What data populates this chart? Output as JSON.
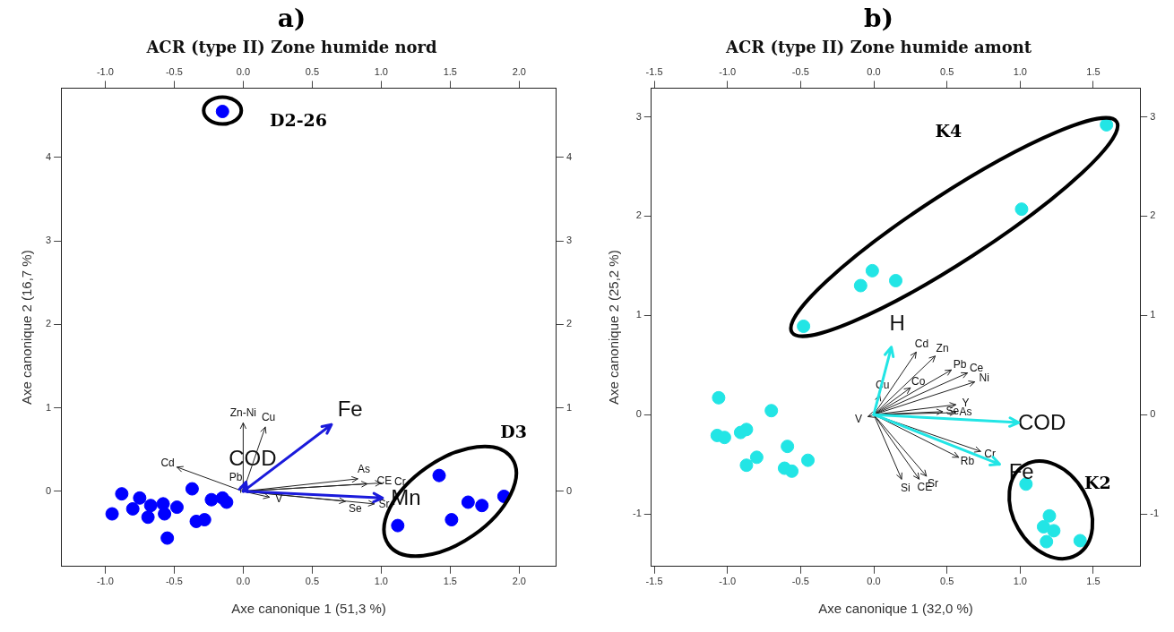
{
  "chart_data": [
    {
      "type": "scatter",
      "title": "a)",
      "subtitle": "ACR (type II) Zone humide nord",
      "xlabel": "Axe canonique 1 (51,3 %)",
      "ylabel": "Axe canonique 2 (16,7 %)",
      "xlim": [
        -1.32,
        2.27
      ],
      "xticks": [
        {
          "value": -1,
          "label": "-1.0"
        },
        {
          "value": -0.5,
          "label": "-0.5"
        },
        {
          "value": 0,
          "label": "0.0"
        },
        {
          "value": 0.5,
          "label": "0.5"
        },
        {
          "value": 1,
          "label": "1.0"
        },
        {
          "value": 1.5,
          "label": "1.5"
        },
        {
          "value": 2,
          "label": "2.0"
        }
      ],
      "x2lim": [
        -1.32,
        2.27
      ],
      "x2ticks": [
        {
          "value": -1,
          "label": "-1.0"
        },
        {
          "value": -0.5,
          "label": "-0.5"
        },
        {
          "value": 0,
          "label": "0.0"
        },
        {
          "value": 0.5,
          "label": "0.5"
        },
        {
          "value": 1,
          "label": "1.0"
        },
        {
          "value": 1.5,
          "label": "1.5"
        },
        {
          "value": 2,
          "label": "2.0"
        }
      ],
      "ylim": [
        -0.9,
        4.83
      ],
      "yticks": [
        0,
        1,
        2,
        3,
        4
      ],
      "y2lim": [
        -0.9,
        4.83
      ],
      "y2ticks": [
        0,
        1,
        2,
        3,
        4
      ],
      "series": [
        {
          "marker": "circle",
          "color": "#0000ff",
          "x": [
            -0.95,
            -0.88,
            -0.8,
            -0.75,
            -0.69,
            -0.67,
            -0.58,
            -0.57,
            -0.48,
            -0.55,
            -0.37,
            -0.34,
            -0.28,
            -0.23,
            -0.15,
            -0.12,
            1.12,
            1.42,
            1.51,
            1.63,
            1.73,
            1.89,
            -0.15
          ],
          "values": [
            -0.27,
            -0.03,
            -0.21,
            -0.08,
            -0.31,
            -0.17,
            -0.15,
            -0.27,
            -0.19,
            -0.56,
            0.03,
            -0.36,
            -0.34,
            -0.1,
            -0.08,
            -0.13,
            -0.41,
            0.19,
            -0.34,
            -0.13,
            -0.17,
            -0.06,
            4.55
          ]
        }
      ],
      "annotations": [
        "D2-26",
        "D3",
        "Cd",
        "Zn-Ni",
        "Cu",
        "Pb",
        "V",
        "Se",
        "As",
        "CE",
        "Cr",
        "Sr",
        "COD",
        "Fe",
        "Mn"
      ]
    },
    {
      "type": "scatter",
      "title": "b)",
      "subtitle": "ACR (type II) Zone humide amont",
      "xlabel": "Axe canonique 1 (32,0 %)",
      "ylabel": "Axe canonique 2 (25,2 %)",
      "xlim": [
        -1.52,
        1.82
      ],
      "xticks": [
        {
          "value": -1.5,
          "label": "-1.5"
        },
        {
          "value": -1,
          "label": "-1.0"
        },
        {
          "value": -0.5,
          "label": "-0.5"
        },
        {
          "value": 0,
          "label": "0.0"
        },
        {
          "value": 0.5,
          "label": "0.5"
        },
        {
          "value": 1,
          "label": "1.0"
        },
        {
          "value": 1.5,
          "label": "1.5"
        }
      ],
      "x2lim": [
        -1.52,
        1.82
      ],
      "x2ticks": [
        {
          "value": -1.5,
          "label": "-1.5"
        },
        {
          "value": -1,
          "label": "-1.0"
        },
        {
          "value": -0.5,
          "label": "-0.5"
        },
        {
          "value": 0,
          "label": "0.0"
        },
        {
          "value": 0.5,
          "label": "0.5"
        },
        {
          "value": 1,
          "label": "1.0"
        },
        {
          "value": 1.5,
          "label": "1.5"
        }
      ],
      "ylim": [
        -1.53,
        3.29
      ],
      "yticks": [
        -1,
        0,
        1,
        2,
        3
      ],
      "y2lim": [
        -1.53,
        3.29
      ],
      "y2ticks": [
        -1,
        0,
        1,
        2,
        3
      ],
      "series": [
        {
          "marker": "circle",
          "color": "#22e5e5",
          "x": [
            -0.01,
            -0.09,
            0.15,
            -0.48,
            -1.06,
            -0.7,
            -1.07,
            -1.02,
            -0.91,
            -0.87,
            -0.59,
            -0.45,
            -0.8,
            -0.87,
            -0.61,
            -0.56,
            1.59,
            1.01,
            1.04,
            1.2,
            1.16,
            1.23,
            1.18,
            1.41
          ],
          "values": [
            1.45,
            1.3,
            1.35,
            0.89,
            0.17,
            0.04,
            -0.21,
            -0.23,
            -0.18,
            -0.15,
            -0.32,
            -0.46,
            -0.43,
            -0.51,
            -0.54,
            -0.57,
            2.92,
            2.07,
            -0.7,
            -1.02,
            -1.13,
            -1.17,
            -1.28,
            -1.27
          ]
        }
      ],
      "annotations": [
        "K4",
        "K2",
        "Cd",
        "Zn",
        "Pb",
        "Ce",
        "Ni",
        "Co",
        "Cu",
        "Y",
        "Se",
        "As",
        "V",
        "Rb",
        "Cr",
        "Si",
        "CE",
        "Sr",
        "H",
        "COD",
        "Fe"
      ]
    }
  ]
}
